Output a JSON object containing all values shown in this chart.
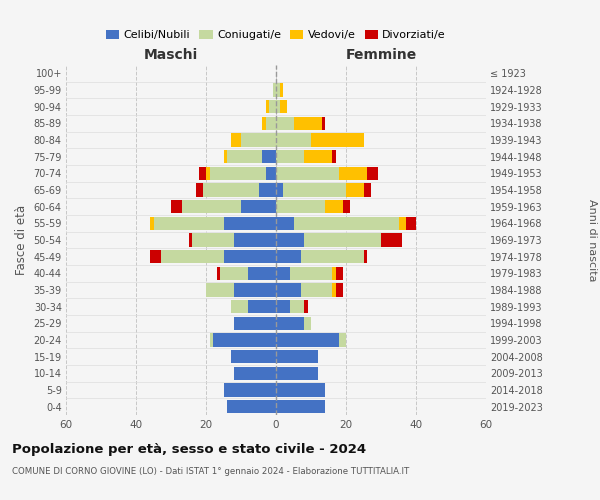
{
  "age_groups": [
    "0-4",
    "5-9",
    "10-14",
    "15-19",
    "20-24",
    "25-29",
    "30-34",
    "35-39",
    "40-44",
    "45-49",
    "50-54",
    "55-59",
    "60-64",
    "65-69",
    "70-74",
    "75-79",
    "80-84",
    "85-89",
    "90-94",
    "95-99",
    "100+"
  ],
  "birth_years": [
    "2019-2023",
    "2014-2018",
    "2009-2013",
    "2004-2008",
    "1999-2003",
    "1994-1998",
    "1989-1993",
    "1984-1988",
    "1979-1983",
    "1974-1978",
    "1969-1973",
    "1964-1968",
    "1959-1963",
    "1954-1958",
    "1949-1953",
    "1944-1948",
    "1939-1943",
    "1934-1938",
    "1929-1933",
    "1924-1928",
    "≤ 1923"
  ],
  "maschi": {
    "celibi": [
      14,
      15,
      12,
      13,
      18,
      12,
      8,
      12,
      8,
      15,
      12,
      15,
      10,
      5,
      3,
      4,
      0,
      0,
      0,
      0,
      0
    ],
    "coniugati": [
      0,
      0,
      0,
      0,
      1,
      0,
      5,
      8,
      8,
      18,
      12,
      20,
      17,
      16,
      16,
      10,
      10,
      3,
      2,
      1,
      0
    ],
    "vedovi": [
      0,
      0,
      0,
      0,
      0,
      0,
      0,
      0,
      0,
      0,
      0,
      1,
      0,
      0,
      1,
      1,
      3,
      1,
      1,
      0,
      0
    ],
    "divorziati": [
      0,
      0,
      0,
      0,
      0,
      0,
      0,
      0,
      1,
      3,
      1,
      0,
      3,
      2,
      2,
      0,
      0,
      0,
      0,
      0,
      0
    ]
  },
  "femmine": {
    "nubili": [
      14,
      14,
      12,
      12,
      18,
      8,
      4,
      7,
      4,
      7,
      8,
      5,
      0,
      2,
      0,
      0,
      0,
      0,
      0,
      0,
      0
    ],
    "coniugate": [
      0,
      0,
      0,
      0,
      2,
      2,
      4,
      9,
      12,
      18,
      22,
      30,
      14,
      18,
      18,
      8,
      10,
      5,
      1,
      1,
      0
    ],
    "vedove": [
      0,
      0,
      0,
      0,
      0,
      0,
      0,
      1,
      1,
      0,
      0,
      2,
      5,
      5,
      8,
      8,
      15,
      8,
      2,
      1,
      0
    ],
    "divorziate": [
      0,
      0,
      0,
      0,
      0,
      0,
      1,
      2,
      2,
      1,
      6,
      3,
      2,
      2,
      3,
      1,
      0,
      1,
      0,
      0,
      0
    ]
  },
  "colors": {
    "celibi": "#4472c4",
    "coniugati": "#c5d9a0",
    "vedovi": "#ffc000",
    "divorziati": "#cc0000"
  },
  "xlim": 60,
  "title": "Popolazione per età, sesso e stato civile - 2024",
  "subtitle": "COMUNE DI CORNO GIOVINE (LO) - Dati ISTAT 1° gennaio 2024 - Elaborazione TUTTITALIA.IT",
  "xlabel_left": "Maschi",
  "xlabel_right": "Femmine",
  "ylabel": "Fasce di età",
  "ylabel_right": "Anni di nascita",
  "legend_labels": [
    "Celibi/Nubili",
    "Coniugati/e",
    "Vedovi/e",
    "Divorziati/e"
  ],
  "bg_color": "#f5f5f5"
}
